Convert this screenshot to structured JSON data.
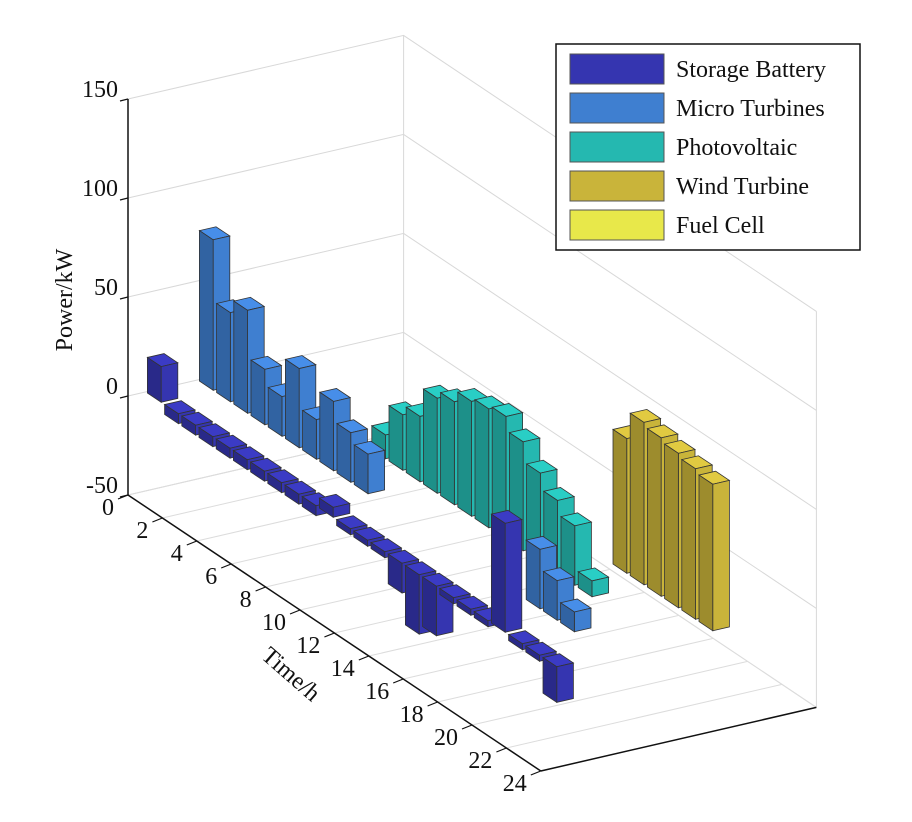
{
  "chart_data": {
    "type": "bar3d",
    "xlabel": "Time/h",
    "ylabel": "Power/kW",
    "xlim": [
      0,
      24
    ],
    "zlim": [
      -50,
      150
    ],
    "x_ticks": [
      0,
      2,
      4,
      6,
      8,
      10,
      12,
      14,
      16,
      18,
      20,
      22,
      24
    ],
    "z_ticks": [
      -50,
      0,
      50,
      100,
      150
    ],
    "grid": true,
    "legend_position": "top-right",
    "categories": [
      1,
      2,
      3,
      4,
      5,
      6,
      7,
      8,
      9,
      10,
      11,
      12,
      13,
      14,
      15,
      16,
      17,
      18,
      19,
      20,
      21,
      22,
      23,
      24
    ],
    "series": [
      {
        "name": "Storage Battery",
        "color": "#3535b0",
        "values": [
          18,
          -5,
          -5,
          -5,
          -5,
          -5,
          -5,
          -5,
          -5,
          -5,
          5,
          -3,
          -3,
          -3,
          -15,
          -30,
          -25,
          -3,
          -3,
          -3,
          55,
          -3,
          -3,
          -18
        ]
      },
      {
        "name": "Micro Turbines",
        "color": "#3f7fd0",
        "values": [
          76,
          45,
          52,
          28,
          20,
          40,
          20,
          35,
          25,
          20,
          0,
          0,
          0,
          0,
          0,
          0,
          0,
          0,
          0,
          30,
          20,
          10,
          0,
          0
        ]
      },
      {
        "name": "Photovoltaic",
        "color": "#25b8b0",
        "values": [
          0,
          0,
          0,
          0,
          0,
          0,
          0,
          12,
          28,
          33,
          48,
          52,
          58,
          60,
          62,
          55,
          45,
          37,
          30,
          8,
          0,
          0,
          0,
          0
        ]
      },
      {
        "name": "Wind Turbine",
        "color": "#c9b43a",
        "values": [
          0,
          0,
          0,
          0,
          0,
          0,
          0,
          0,
          0,
          0,
          0,
          0,
          0,
          0,
          0,
          0,
          0,
          0,
          68,
          82,
          80,
          78,
          76,
          74
        ]
      },
      {
        "name": "Fuel Cell",
        "color": "#e8e84a",
        "values": [
          0,
          0,
          0,
          0,
          0,
          0,
          0,
          0,
          0,
          0,
          0,
          0,
          0,
          0,
          0,
          0,
          0,
          0,
          0,
          0,
          0,
          0,
          0,
          0
        ]
      }
    ]
  }
}
